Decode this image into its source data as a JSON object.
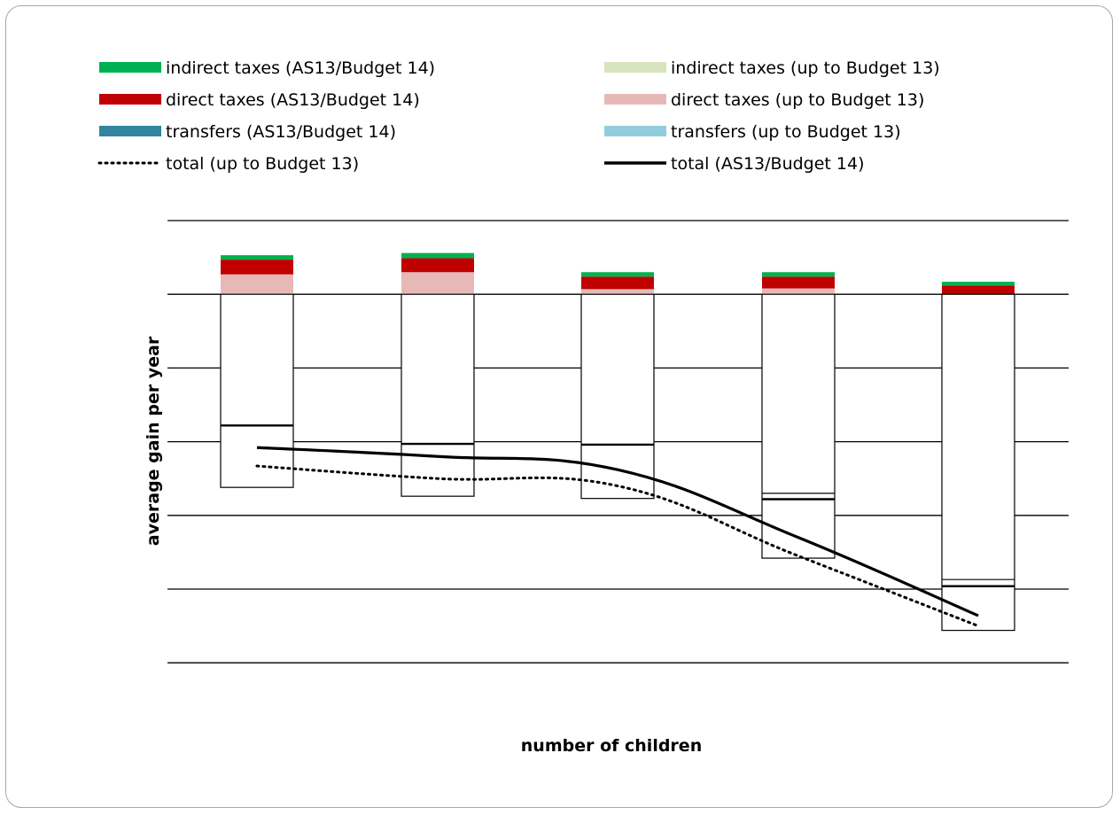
{
  "chart_data": {
    "type": "bar",
    "stacked": true,
    "xlabel": "number of children",
    "ylabel": "average gain per year",
    "categories": [
      "",
      "",
      "",
      "",
      ""
    ],
    "y_gridlines": 7,
    "legend_position": "top",
    "series": [
      {
        "name": "indirect taxes (AS13/Budget 14)",
        "kind": "bar",
        "color": "#00b050",
        "values": [
          0.06,
          0.07,
          0.06,
          0.06,
          0.05
        ]
      },
      {
        "name": "indirect taxes (up to Budget 13)",
        "kind": "bar",
        "color": "#d7e4bd",
        "values": [
          0,
          0,
          0,
          0,
          0
        ]
      },
      {
        "name": "direct taxes (AS13/Budget 14)",
        "kind": "bar",
        "color": "#c00000",
        "values": [
          0.2,
          0.19,
          0.17,
          0.16,
          0.12
        ]
      },
      {
        "name": "direct taxes (up to Budget 13)",
        "kind": "bar",
        "color": "#e6b9b8",
        "values": [
          0.27,
          0.3,
          0.07,
          0.08,
          0
        ]
      },
      {
        "name": "transfers (AS13/Budget 14)",
        "kind": "bar",
        "color": "#31859c",
        "values": [
          -2.62,
          -2.74,
          -2.77,
          -3.58,
          -4.56
        ]
      },
      {
        "name": "transfers (up to Budget 13)",
        "kind": "bar",
        "color": "#93cddd",
        "values": [
          -1.78,
          -2.03,
          -2.04,
          -2.78,
          -3.96
        ]
      },
      {
        "name": "total (up to Budget 13)",
        "kind": "line",
        "style": "dotted",
        "color": "#000000",
        "values": [
          -2.33,
          -2.5,
          -2.6,
          -3.55,
          -4.5
        ]
      },
      {
        "name": "total (AS13/Budget 14)",
        "kind": "line",
        "style": "solid",
        "color": "#000000",
        "values": [
          -2.08,
          -2.2,
          -2.38,
          -3.3,
          -4.36
        ]
      }
    ],
    "segment_markers": [
      [
        -1.78
      ],
      [
        -2.03
      ],
      [
        -2.04
      ],
      [
        -2.78,
        -2.7
      ],
      [
        -3.96,
        -3.87
      ]
    ]
  }
}
